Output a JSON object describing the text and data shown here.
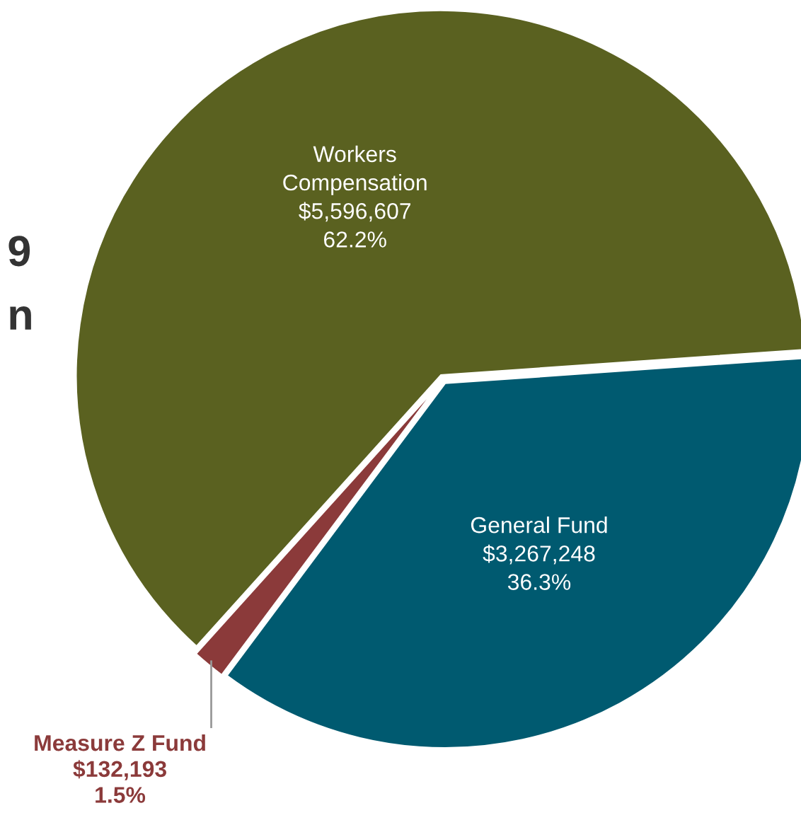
{
  "chart_data": {
    "type": "pie",
    "categories": [
      "Workers\nCompensation",
      "Measure Z Fund",
      "General Fund"
    ],
    "values": [
      5596607,
      132193,
      3267248
    ],
    "colors": [
      "#5a6120",
      "#8b3a3a",
      "#005a70"
    ],
    "value_labels": [
      "$5,596,607\n62.2%",
      "$132,193\n1.5%",
      "$3,267,248\n36.3%"
    ],
    "annotations": [
      "9",
      "n"
    ],
    "legend": false
  }
}
